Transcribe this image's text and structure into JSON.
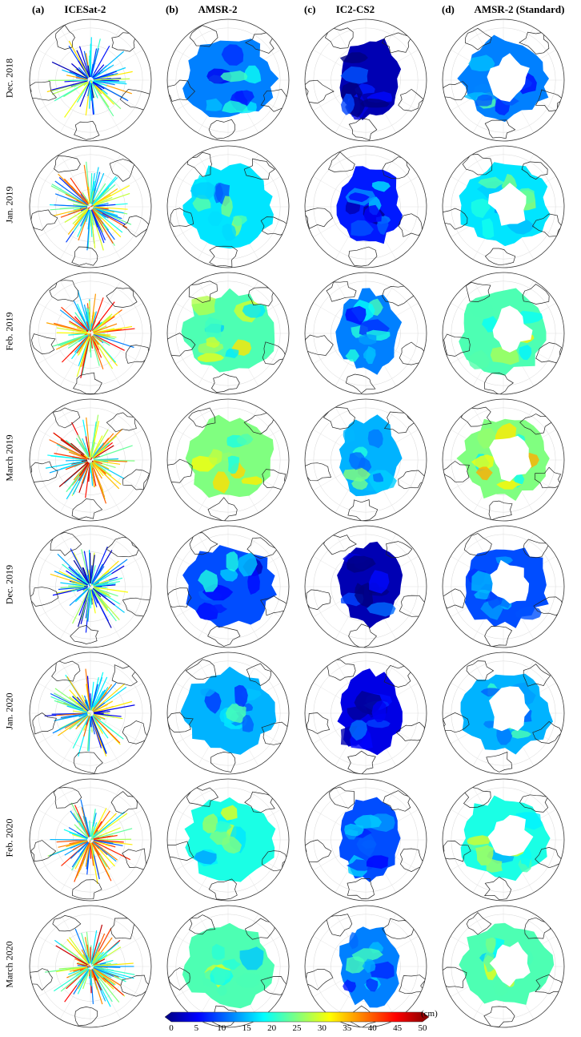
{
  "columns": [
    {
      "tag": "(a)",
      "title": "ICESat-2",
      "style": "tracks"
    },
    {
      "tag": "(b)",
      "title": "AMSR-2",
      "style": "full"
    },
    {
      "tag": "(c)",
      "title": "IC2-CS2",
      "style": "partial"
    },
    {
      "tag": "(d)",
      "title": "AMSR-2 (Standard)",
      "style": "holes"
    }
  ],
  "rows": [
    {
      "label": "Dec. 2018",
      "tone": 0.25
    },
    {
      "label": "Jan. 2019",
      "tone": 0.35
    },
    {
      "label": "Feb. 2019",
      "tone": 0.45
    },
    {
      "label": "March 2019",
      "tone": 0.5
    },
    {
      "label": "Dec. 2019",
      "tone": 0.2
    },
    {
      "label": "Jan. 2020",
      "tone": 0.3
    },
    {
      "label": "Feb. 2020",
      "tone": 0.4
    },
    {
      "label": "March 2020",
      "tone": 0.45
    }
  ],
  "colorbar": {
    "ticks": [
      "0",
      "5",
      "10",
      "15",
      "20",
      "25",
      "30",
      "35",
      "40",
      "45",
      "50"
    ],
    "unit": "(cm)",
    "colors": [
      "#00007f",
      "#0000ff",
      "#007fff",
      "#00ffff",
      "#7fff7f",
      "#ffff00",
      "#ff7f00",
      "#ff0000",
      "#7f0000"
    ]
  }
}
